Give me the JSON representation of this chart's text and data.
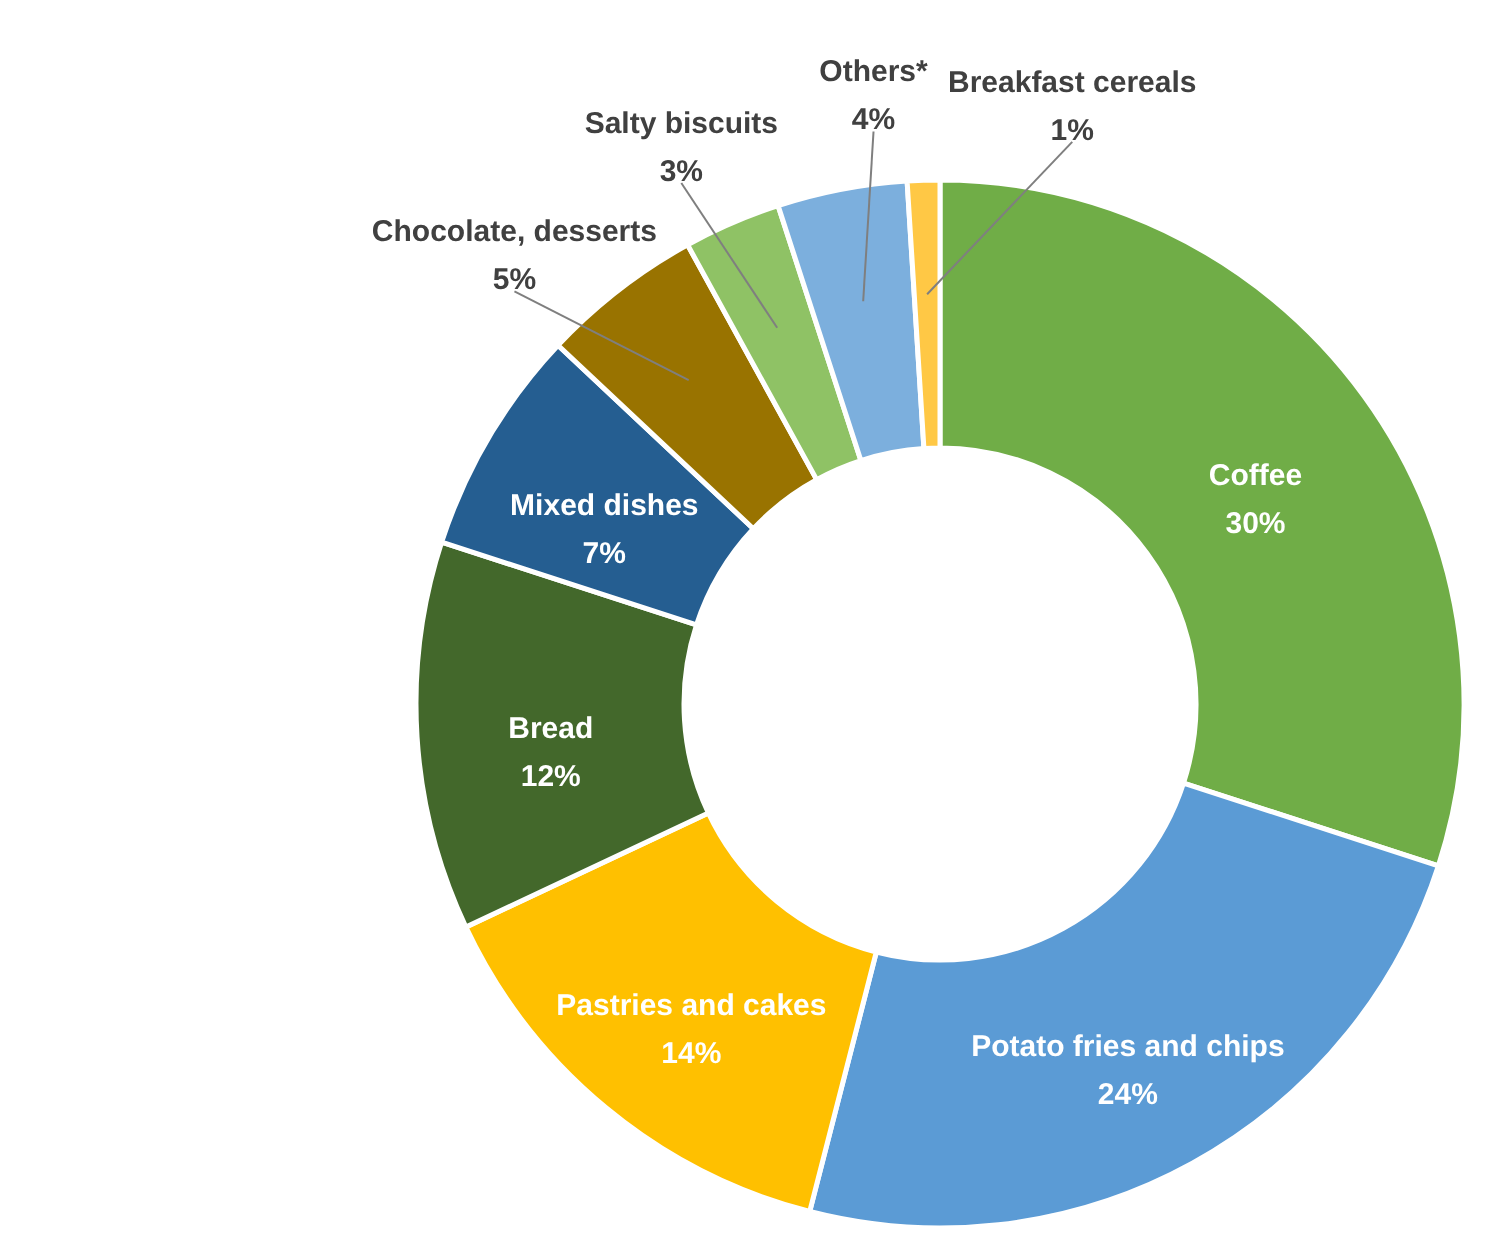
{
  "chart_data": {
    "type": "donut",
    "categories": [
      "Coffee",
      "Potato fries and chips",
      "Pastries and cakes",
      "Bread",
      "Mixed dishes",
      "Chocolate, desserts",
      "Salty biscuits",
      "Others*",
      "Breakfast cereals"
    ],
    "values": [
      30,
      24,
      14,
      12,
      7,
      5,
      3,
      4,
      1
    ],
    "value_labels": [
      "30%",
      "24%",
      "14%",
      "12%",
      "7%",
      "5%",
      "3%",
      "4%",
      "1%"
    ],
    "colors": [
      "#70ad47",
      "#5b9bd5",
      "#ffc000",
      "#43682b",
      "#255e91",
      "#997300",
      "#8fc265",
      "#7cafdd",
      "#ffc845"
    ]
  }
}
